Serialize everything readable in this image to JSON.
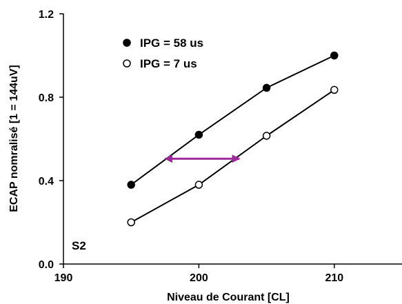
{
  "chart_data": {
    "type": "line",
    "title": "",
    "xlabel": "Niveau de Courant [CL]",
    "ylabel": "ECAP nomralisé [1 = 144uV]",
    "xlim": [
      190,
      215
    ],
    "ylim": [
      0.0,
      1.2
    ],
    "xticks": [
      190,
      200,
      210
    ],
    "xtick_labels": [
      "190",
      "200",
      "210"
    ],
    "yticks": [
      0.0,
      0.4,
      0.8,
      1.2
    ],
    "ytick_labels": [
      "0.0",
      "0.4",
      "0.8",
      "1.2"
    ],
    "grid": false,
    "legend_position": "top-left",
    "annotation": "S2",
    "series": [
      {
        "name": "IPG = 58 us",
        "marker": "filled-circle",
        "x": [
          195,
          200,
          205,
          210
        ],
        "y": [
          0.38,
          0.62,
          0.845,
          1.0
        ]
      },
      {
        "name": "IPG = 7 us",
        "marker": "open-circle",
        "x": [
          195,
          200,
          205,
          210
        ],
        "y": [
          0.2,
          0.38,
          0.615,
          0.835
        ]
      }
    ],
    "arrow": {
      "type": "double-headed",
      "color": "#9b2a9b",
      "x_from": 197.5,
      "x_to": 203,
      "y": 0.505
    }
  }
}
